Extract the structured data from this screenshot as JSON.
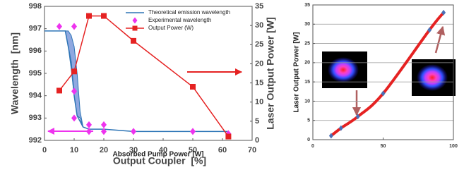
{
  "chart_data": [
    {
      "type": "line",
      "xlabel": "Output Coupler  [%]",
      "ylabel": "Wavelength  [nm]",
      "y2label": "Laser Output Power [W]",
      "xlim": [
        0,
        70
      ],
      "xticks": [
        0,
        10,
        20,
        30,
        40,
        50,
        60,
        70
      ],
      "ylim": [
        992,
        998
      ],
      "yticks": [
        992,
        993,
        994,
        995,
        996,
        997,
        998
      ],
      "y2lim": [
        0,
        35
      ],
      "y2ticks": [
        0,
        5,
        10,
        15,
        20,
        25,
        30,
        35
      ],
      "grid": false,
      "legend": "top-right",
      "band": {
        "color": "#8fa8e0",
        "x": [
          7,
          8,
          9,
          10,
          11,
          12,
          13
        ],
        "upper": [
          996.9,
          996.9,
          996.7,
          996.2,
          995,
          993.3,
          992.6
        ],
        "lower": [
          996.9,
          996.2,
          995.2,
          994,
          993.1,
          993.0,
          992.6
        ]
      },
      "series": [
        {
          "name": "Theoretical emission wavelength",
          "color": "#2e75b6",
          "marker": "none",
          "line": true,
          "x": [
            0,
            7,
            9,
            10,
            11,
            13,
            15,
            20,
            30,
            50,
            62
          ],
          "values": [
            996.9,
            996.9,
            995.5,
            994,
            993.1,
            992.6,
            992.5,
            992.5,
            992.4,
            992.4,
            992.4
          ]
        },
        {
          "name": "Experimental wavelength",
          "color": "#ee33ee",
          "marker": "diamond",
          "line": false,
          "x": [
            5,
            10,
            10,
            10,
            15,
            15,
            20,
            20,
            30,
            50,
            62
          ],
          "values": [
            997.1,
            997.1,
            994.2,
            993.0,
            992.7,
            992.4,
            992.7,
            992.4,
            992.4,
            992.4,
            992.3
          ]
        },
        {
          "name": "Output Power (W)",
          "color": "#e52222",
          "marker": "square",
          "line": true,
          "axis": "y2",
          "x": [
            5,
            10,
            15,
            20,
            30,
            50,
            62
          ],
          "values": [
            13,
            18,
            32.5,
            32.5,
            26,
            14,
            1
          ]
        }
      ]
    },
    {
      "type": "line",
      "xlabel": "Absorbed Pump Power [W]",
      "ylabel": "Laser Output Power [W]",
      "xlim": [
        0,
        100
      ],
      "xticks": [
        0,
        50,
        100
      ],
      "ylim": [
        0,
        35
      ],
      "yticks": [
        0,
        5,
        10,
        15,
        20,
        25,
        30,
        35
      ],
      "grid": true,
      "smooth": true,
      "series": [
        {
          "color": "#e52222",
          "marker": "diamond",
          "marker_color": "#4a6fb5",
          "line": true,
          "x": [
            13,
            20,
            32,
            50,
            83,
            93
          ],
          "values": [
            1,
            3,
            6,
            12,
            28.5,
            33
          ]
        }
      ]
    }
  ]
}
